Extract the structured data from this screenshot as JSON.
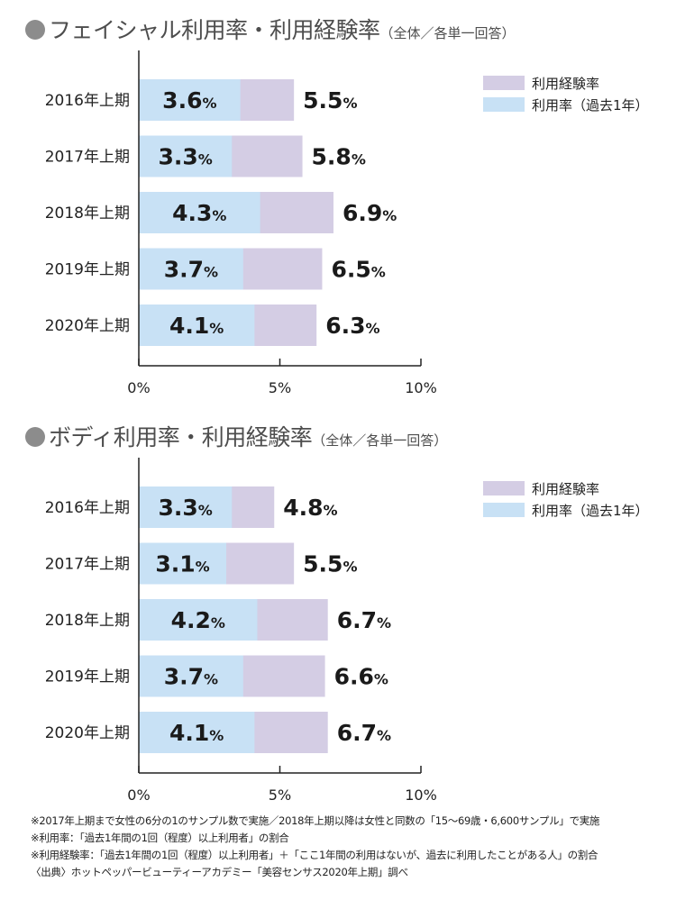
{
  "colors": {
    "experience": "#d4cde4",
    "usage": "#c8e1f5",
    "axis": "#222222"
  },
  "legend": {
    "experience_label": "利用経験率",
    "usage_label": "利用率（過去1年）"
  },
  "chart_data": [
    {
      "type": "bar",
      "title": "フェイシャル利用率・利用経験率",
      "subtitle": "（全体／各単一回答）",
      "categories": [
        "2016年上期",
        "2017年上期",
        "2018年上期",
        "2019年上期",
        "2020年上期"
      ],
      "series": [
        {
          "name": "利用率（過去1年）",
          "values": [
            3.6,
            3.3,
            4.3,
            3.7,
            4.1
          ]
        },
        {
          "name": "利用経験率",
          "values": [
            5.5,
            5.8,
            6.9,
            6.5,
            6.3
          ]
        }
      ],
      "xlim": [
        0,
        10
      ],
      "xticks": [
        "0%",
        "5%",
        "10%"
      ],
      "orientation": "horizontal",
      "unit": "%"
    },
    {
      "type": "bar",
      "title": "ボディ利用率・利用経験率",
      "subtitle": "（全体／各単一回答）",
      "categories": [
        "2016年上期",
        "2017年上期",
        "2018年上期",
        "2019年上期",
        "2020年上期"
      ],
      "series": [
        {
          "name": "利用率（過去1年）",
          "values": [
            3.3,
            3.1,
            4.2,
            3.7,
            4.1
          ]
        },
        {
          "name": "利用経験率",
          "values": [
            4.8,
            5.5,
            6.7,
            6.6,
            6.7
          ]
        }
      ],
      "xlim": [
        0,
        10
      ],
      "xticks": [
        "0%",
        "5%",
        "10%"
      ],
      "orientation": "horizontal",
      "unit": "%"
    }
  ],
  "notes": [
    "※2017年上期まで女性の6分の1のサンプル数で実施／2018年上期以降は女性と同数の「15〜69歳・6,600サンプル」で実施",
    "※利用率：「過去1年間の1回（程度）以上利用者」の割合",
    "※利用経験率：「過去1年間の1回（程度）以上利用者」＋「ここ1年間の利用はないが、過去に利用したことがある人」の割合",
    "〈出典〉ホットペッパービューティーアカデミー「美容センサス2020年上期」調べ"
  ]
}
